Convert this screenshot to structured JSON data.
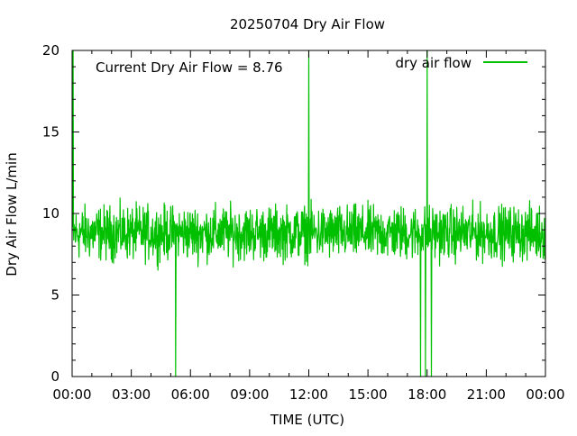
{
  "chart_data": {
    "type": "line",
    "title": "20250704 Dry Air Flow",
    "xlabel": "TIME (UTC)",
    "ylabel": "Dry Air Flow L/min",
    "annotation": "Current Dry Air Flow = 8.76",
    "x_ticks": [
      "00:00",
      "03:00",
      "06:00",
      "09:00",
      "12:00",
      "15:00",
      "18:00",
      "21:00",
      "00:00"
    ],
    "x_tick_hours": [
      0,
      3,
      6,
      9,
      12,
      15,
      18,
      21,
      24
    ],
    "xlim_hours": [
      0,
      24
    ],
    "y_ticks": [
      0,
      5,
      10,
      15,
      20
    ],
    "ylim": [
      0,
      20
    ],
    "grid": false,
    "legend_position": "top-right",
    "series": [
      {
        "name": "dry air flow",
        "color": "#00c000",
        "baseline_mean": 8.8,
        "baseline_range": [
          6.5,
          11.0
        ],
        "spikes": [
          {
            "time": "00:03",
            "value": 20
          },
          {
            "time": "05:15",
            "value": 0
          },
          {
            "time": "12:00",
            "value": 20
          },
          {
            "time": "17:40",
            "value": 0
          },
          {
            "time": "17:55",
            "value": 0
          },
          {
            "time": "18:00",
            "value": 20
          },
          {
            "time": "18:13",
            "value": 0
          }
        ]
      }
    ]
  }
}
